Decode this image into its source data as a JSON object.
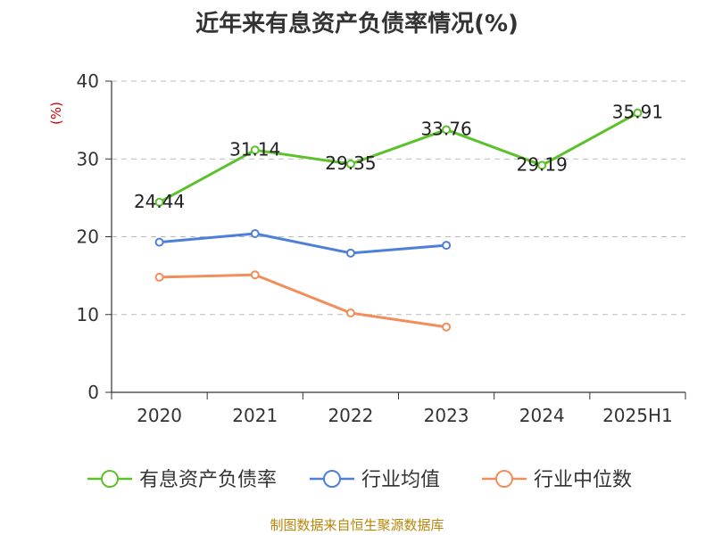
{
  "chart_data": {
    "type": "line",
    "title": "近年来有息资产负债率情况(%)",
    "ylabel": "(%)",
    "xlabel": "",
    "categories": [
      "2020",
      "2021",
      "2022",
      "2023",
      "2024",
      "2025H1"
    ],
    "ylim": [
      0,
      40
    ],
    "yticks": [
      0,
      10,
      20,
      30,
      40
    ],
    "grid": true,
    "legend_position": "bottom",
    "series": [
      {
        "name": "有息资产负债率",
        "color": "#5CC12B",
        "values": [
          24.44,
          31.14,
          29.35,
          33.76,
          29.19,
          35.91
        ],
        "labels": [
          "24.44",
          "31.14",
          "29.35",
          "33.76",
          "29.19",
          "35.91"
        ],
        "show_labels": true
      },
      {
        "name": "行业均值",
        "color": "#4E7FD9",
        "values": [
          19.3,
          20.4,
          17.9,
          18.9,
          null,
          null
        ],
        "show_labels": false
      },
      {
        "name": "行业中位数",
        "color": "#F28E5B",
        "values": [
          14.8,
          15.1,
          10.2,
          8.4,
          null,
          null
        ],
        "show_labels": false
      }
    ]
  },
  "source": "制图数据来自恒生聚源数据库"
}
